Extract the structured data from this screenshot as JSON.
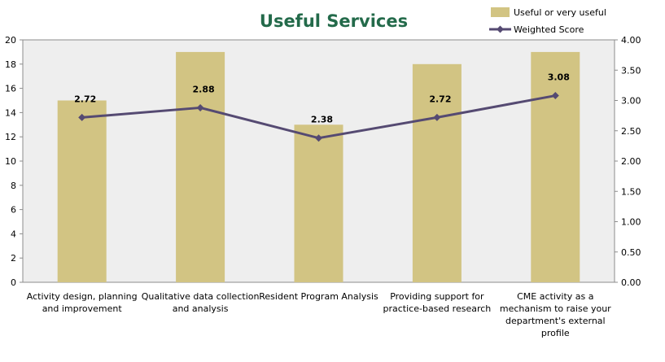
{
  "chart_data": {
    "type": "bar",
    "title": "Useful Services",
    "categories": [
      [
        "Activity design, planning",
        "and improvement"
      ],
      [
        "Qualitative data collection",
        "and analysis"
      ],
      [
        "Resident Program Analysis"
      ],
      [
        "Providing support for",
        "practice-based research"
      ],
      [
        "CME activity as a",
        "mechanism to raise your",
        "department's external",
        "profile"
      ]
    ],
    "series": [
      {
        "name": "Useful or very useful",
        "type": "bar",
        "axis": "left",
        "values": [
          15,
          19,
          13,
          18,
          19
        ],
        "color": "#d2c483"
      },
      {
        "name": "Weighted Score",
        "type": "line",
        "axis": "right",
        "values": [
          2.72,
          2.88,
          2.38,
          2.72,
          3.08
        ],
        "labels": [
          "2.72",
          "2.88",
          "2.38",
          "2.72",
          "3.08"
        ],
        "color": "#554a72"
      }
    ],
    "left_axis": {
      "ylim": [
        0,
        20
      ],
      "step": 2,
      "ticks": [
        "0",
        "2",
        "4",
        "6",
        "8",
        "10",
        "12",
        "14",
        "16",
        "18",
        "20"
      ]
    },
    "right_axis": {
      "ylim": [
        0,
        4
      ],
      "step": 0.5,
      "ticks": [
        "0.00",
        "0.50",
        "1.00",
        "1.50",
        "2.00",
        "2.50",
        "3.00",
        "3.50",
        "4.00"
      ]
    },
    "legend_position": "top-right",
    "plot_background": "#eeeeee",
    "grid": false
  }
}
